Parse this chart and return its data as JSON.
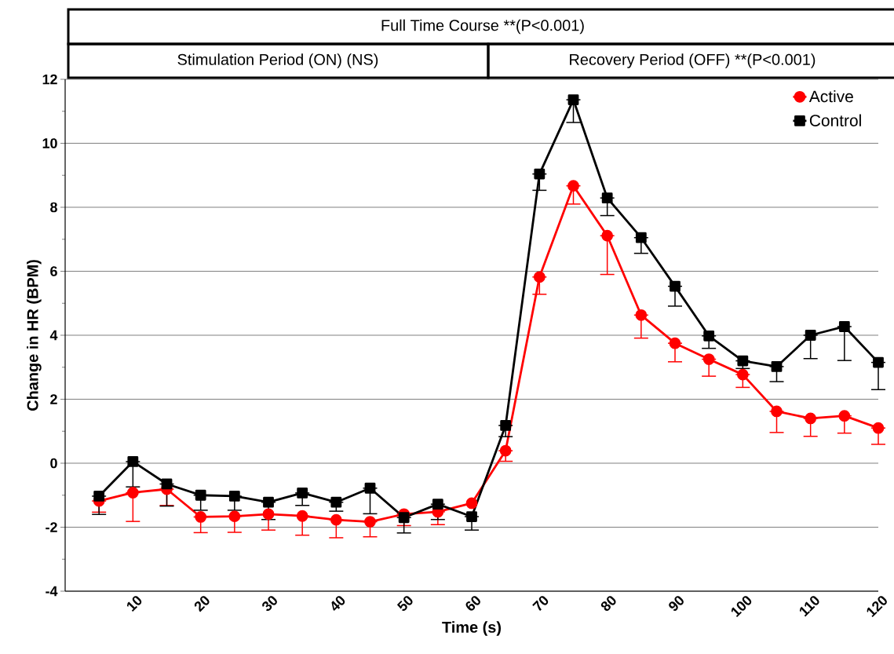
{
  "chart_data": {
    "type": "line",
    "xlabel": "Time (s)",
    "ylabel": "Change in HR (BPM)",
    "annotations": [
      "Full Time Course **(P<0.001)",
      "Stimulation Period (ON) (NS)",
      "Recovery Period (OFF)  **(P<0.001)"
    ],
    "x": [
      5,
      10,
      15,
      20,
      25,
      30,
      35,
      40,
      45,
      50,
      55,
      60,
      65,
      70,
      75,
      80,
      85,
      90,
      95,
      100,
      105,
      110,
      115,
      120
    ],
    "series": [
      {
        "name": "Active",
        "color": "#ff0000",
        "marker": "circle",
        "values": [
          -1.18,
          -0.92,
          -0.81,
          -1.68,
          -1.66,
          -1.59,
          -1.65,
          -1.77,
          -1.83,
          -1.59,
          -1.52,
          -1.25,
          0.39,
          5.82,
          8.67,
          7.11,
          4.63,
          3.75,
          3.25,
          2.77,
          1.62,
          1.4,
          1.48,
          1.1
        ],
        "errors": [
          [
            -1.53,
            -1.18
          ],
          [
            -1.82,
            -0.92
          ],
          [
            -1.32,
            -0.81
          ],
          [
            -2.17,
            -1.68
          ],
          [
            -2.16,
            -1.66
          ],
          [
            -2.09,
            -1.59
          ],
          [
            -2.25,
            -1.65
          ],
          [
            -2.33,
            -1.77
          ],
          [
            -2.3,
            -1.83
          ],
          [
            -1.95,
            -1.59
          ],
          [
            -1.92,
            -1.52
          ],
          null,
          [
            0.06,
            0.39
          ],
          [
            5.28,
            5.82
          ],
          [
            8.1,
            8.67
          ],
          [
            5.9,
            7.11
          ],
          [
            3.91,
            4.63
          ],
          [
            3.17,
            3.75
          ],
          [
            2.72,
            3.25
          ],
          [
            2.37,
            2.77
          ],
          [
            0.96,
            1.62
          ],
          [
            0.84,
            1.4
          ],
          [
            0.94,
            1.48
          ],
          [
            0.59,
            1.1
          ]
        ]
      },
      {
        "name": "Control",
        "color": "#000000",
        "marker": "square",
        "values": [
          -1.03,
          0.05,
          -0.65,
          -1.0,
          -1.03,
          -1.22,
          -0.93,
          -1.22,
          -0.78,
          -1.7,
          -1.28,
          -1.67,
          1.18,
          9.04,
          11.36,
          8.29,
          7.05,
          5.53,
          3.98,
          3.2,
          3.02,
          4.0,
          4.27,
          3.15
        ],
        "errors": [
          [
            -1.6,
            -1.03
          ],
          [
            -0.74,
            0.05
          ],
          [
            -1.34,
            -0.65
          ],
          [
            -1.47,
            -1.0
          ],
          [
            -1.47,
            -1.03
          ],
          [
            -1.76,
            -1.22
          ],
          [
            -1.32,
            -0.93
          ],
          [
            -1.5,
            -1.22
          ],
          [
            -1.58,
            -0.78
          ],
          [
            -2.18,
            -1.7
          ],
          [
            -1.76,
            -1.28
          ],
          [
            -2.09,
            -1.67
          ],
          [
            0.83,
            1.18
          ],
          [
            8.53,
            9.04
          ],
          [
            10.65,
            11.36
          ],
          [
            7.74,
            8.29
          ],
          [
            6.56,
            7.05
          ],
          [
            4.91,
            5.53
          ],
          [
            3.59,
            3.98
          ],
          [
            2.96,
            3.2
          ],
          [
            2.55,
            3.02
          ],
          [
            3.27,
            4.0
          ],
          [
            3.21,
            4.27
          ],
          [
            2.3,
            3.15
          ]
        ]
      }
    ],
    "xlim": [
      0,
      120
    ],
    "xticks": [
      10,
      20,
      30,
      40,
      50,
      60,
      70,
      80,
      90,
      100,
      110,
      120
    ],
    "ylim": [
      -4,
      12
    ],
    "yticks": [
      -4,
      -2,
      0,
      2,
      4,
      6,
      8,
      10,
      12
    ],
    "grid": "y",
    "legend": "top right",
    "line_style": "solid"
  }
}
